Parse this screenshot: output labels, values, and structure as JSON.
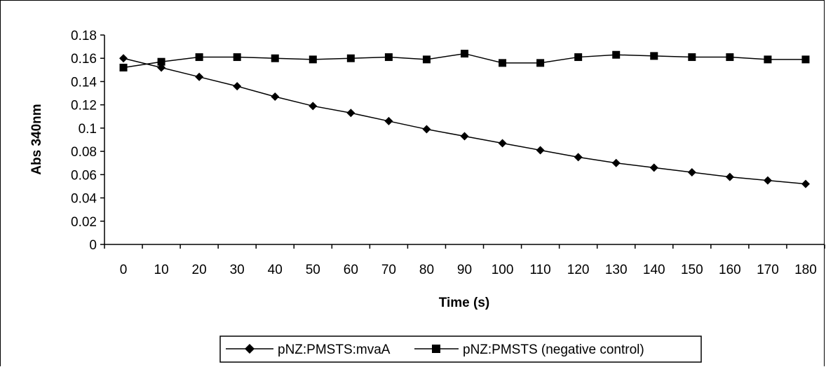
{
  "chart_data": {
    "type": "line",
    "title": "",
    "xlabel": "Time (s)",
    "ylabel": "Abs 340nm",
    "categories": [
      "0",
      "10",
      "20",
      "30",
      "40",
      "50",
      "60",
      "70",
      "80",
      "90",
      "100",
      "110",
      "120",
      "130",
      "140",
      "150",
      "160",
      "170",
      "180"
    ],
    "ylim": [
      0,
      0.18
    ],
    "yticks": [
      "0",
      "0.02",
      "0.04",
      "0.06",
      "0.08",
      "0.1",
      "0.12",
      "0.14",
      "0.16",
      "0.18"
    ],
    "grid": false,
    "legend_position": "bottom",
    "series": [
      {
        "name": "pNZ:PMSTS:mvaA",
        "marker": "diamond",
        "color": "#000000",
        "values": [
          0.16,
          0.152,
          0.144,
          0.136,
          0.127,
          0.119,
          0.113,
          0.106,
          0.099,
          0.093,
          0.087,
          0.081,
          0.075,
          0.07,
          0.066,
          0.062,
          0.058,
          0.055,
          0.052
        ]
      },
      {
        "name": "pNZ:PMSTS (negative control)",
        "marker": "square",
        "color": "#000000",
        "values": [
          0.152,
          0.157,
          0.161,
          0.161,
          0.16,
          0.159,
          0.16,
          0.161,
          0.159,
          0.164,
          0.156,
          0.156,
          0.161,
          0.163,
          0.162,
          0.161,
          0.161,
          0.159,
          0.159
        ]
      }
    ]
  }
}
